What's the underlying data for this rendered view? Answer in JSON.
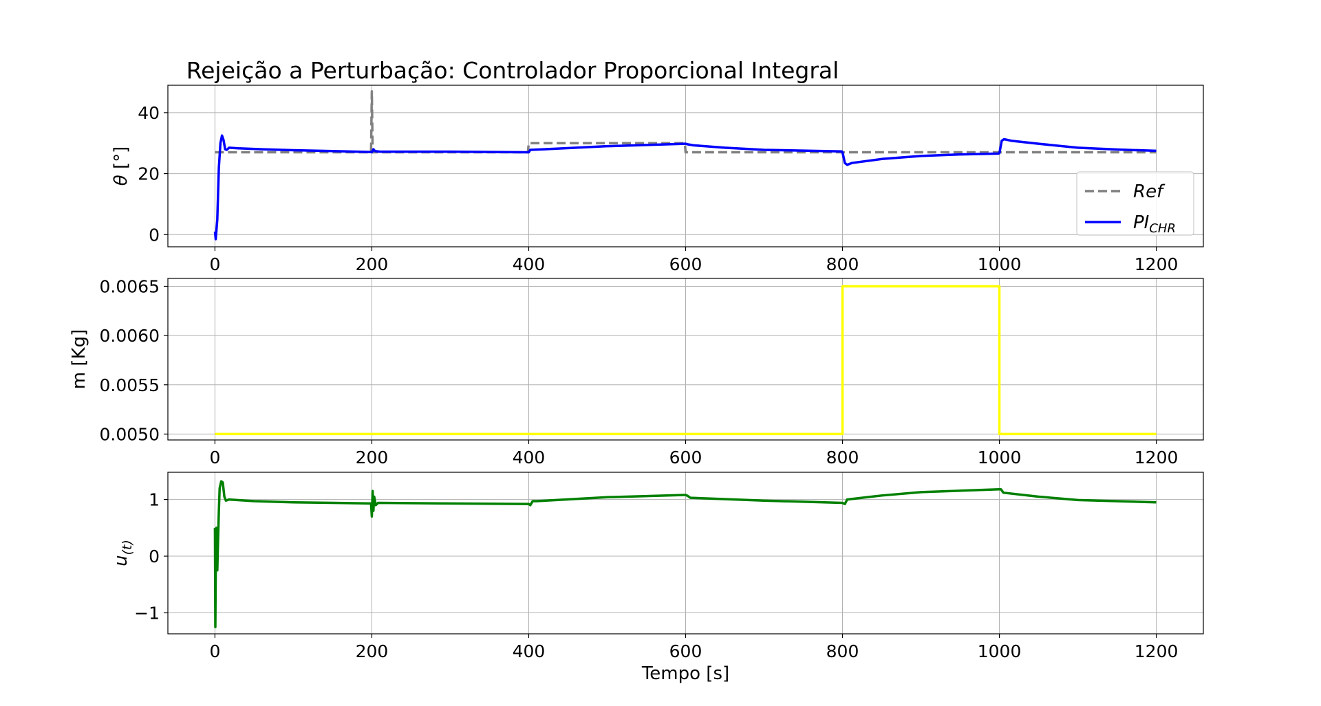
{
  "title": "Rejeição a Perturbação: Controlador Proporcional Integral",
  "chart_data": [
    {
      "type": "line",
      "panel": "theta",
      "ylabel_symbol": "θ",
      "ylabel_unit": "[°]",
      "xlim": [
        -60,
        1260
      ],
      "ylim": [
        -4,
        49
      ],
      "xticks": [
        0,
        200,
        400,
        600,
        800,
        1000,
        1200
      ],
      "yticks": [
        0,
        20,
        40
      ],
      "grid": true,
      "legend_position": "lower-right",
      "series": [
        {
          "name": "Ref",
          "style": "dashed",
          "color": "#808080",
          "points": [
            [
              0,
              27
            ],
            [
              199,
              27
            ],
            [
              200,
              47
            ],
            [
              201,
              27
            ],
            [
              202,
              27
            ],
            [
              399,
              27
            ],
            [
              400,
              30
            ],
            [
              599,
              30
            ],
            [
              600,
              27
            ],
            [
              1200,
              27
            ]
          ]
        },
        {
          "name": "PI",
          "name_subscript": "CHR",
          "style": "solid",
          "color": "#0000ff",
          "points": [
            [
              0,
              1
            ],
            [
              1,
              -1.5
            ],
            [
              3,
              5
            ],
            [
              5,
              22
            ],
            [
              7,
              30
            ],
            [
              9,
              32.5
            ],
            [
              11,
              31
            ],
            [
              13,
              28
            ],
            [
              15,
              27.8
            ],
            [
              18,
              28.5
            ],
            [
              30,
              28.3
            ],
            [
              60,
              28
            ],
            [
              100,
              27.7
            ],
            [
              150,
              27.4
            ],
            [
              199,
              27.1
            ],
            [
              200,
              27
            ],
            [
              202,
              28
            ],
            [
              204,
              27.4
            ],
            [
              210,
              27.2
            ],
            [
              300,
              27.2
            ],
            [
              399,
              27
            ],
            [
              400,
              27
            ],
            [
              402,
              27.8
            ],
            [
              420,
              28
            ],
            [
              500,
              29
            ],
            [
              599,
              29.8
            ],
            [
              600,
              29.8
            ],
            [
              603,
              29.6
            ],
            [
              610,
              29.3
            ],
            [
              650,
              28.5
            ],
            [
              700,
              27.8
            ],
            [
              799,
              27.3
            ],
            [
              800,
              27
            ],
            [
              803,
              23.5
            ],
            [
              806,
              22.9
            ],
            [
              812,
              23.5
            ],
            [
              850,
              24.8
            ],
            [
              900,
              25.8
            ],
            [
              950,
              26.3
            ],
            [
              999,
              26.6
            ],
            [
              1000,
              26.7
            ],
            [
              1003,
              30.8
            ],
            [
              1006,
              31.3
            ],
            [
              1015,
              30.8
            ],
            [
              1050,
              29.8
            ],
            [
              1100,
              28.5
            ],
            [
              1150,
              27.9
            ],
            [
              1200,
              27.5
            ]
          ]
        }
      ]
    },
    {
      "type": "line",
      "panel": "mass",
      "ylabel": "m [Kg]",
      "xlim": [
        -60,
        1260
      ],
      "ylim": [
        0.00494,
        0.00658
      ],
      "xticks": [
        0,
        200,
        400,
        600,
        800,
        1000,
        1200
      ],
      "yticks": [
        0.005,
        0.0055,
        0.006,
        0.0065
      ],
      "ytick_labels": [
        "0.0050",
        "0.0055",
        "0.0060",
        "0.0065"
      ],
      "grid": true,
      "series": [
        {
          "color": "#ffff00",
          "style": "solid",
          "points": [
            [
              0,
              0.005
            ],
            [
              800,
              0.005
            ],
            [
              800,
              0.0065
            ],
            [
              1000,
              0.0065
            ],
            [
              1000,
              0.005
            ],
            [
              1200,
              0.005
            ]
          ]
        }
      ]
    },
    {
      "type": "line",
      "panel": "control",
      "ylabel_symbol": "u",
      "ylabel_subscript": "(t)",
      "xlabel": "Tempo [s]",
      "xlim": [
        -60,
        1260
      ],
      "ylim": [
        -1.37,
        1.48
      ],
      "xticks": [
        0,
        200,
        400,
        600,
        800,
        1000,
        1200
      ],
      "yticks": [
        -1,
        0,
        1
      ],
      "ytick_labels": [
        "−1",
        "0",
        "1"
      ],
      "grid": true,
      "series": [
        {
          "color": "#008000",
          "style": "solid",
          "points": [
            [
              0,
              0.5
            ],
            [
              0.5,
              -1.25
            ],
            [
              1,
              -0.3
            ],
            [
              2,
              0.5
            ],
            [
              3,
              -0.25
            ],
            [
              4,
              0.3
            ],
            [
              5,
              0.8
            ],
            [
              6,
              1.2
            ],
            [
              8,
              1.32
            ],
            [
              10,
              1.3
            ],
            [
              12,
              1.05
            ],
            [
              14,
              0.98
            ],
            [
              18,
              1.0
            ],
            [
              50,
              0.97
            ],
            [
              100,
              0.95
            ],
            [
              150,
              0.94
            ],
            [
              199,
              0.93
            ],
            [
              200,
              0.7
            ],
            [
              201,
              1.15
            ],
            [
              202,
              0.8
            ],
            [
              203,
              1.05
            ],
            [
              205,
              0.9
            ],
            [
              208,
              0.94
            ],
            [
              300,
              0.93
            ],
            [
              399,
              0.92
            ],
            [
              400,
              0.92
            ],
            [
              402,
              0.9
            ],
            [
              405,
              0.97
            ],
            [
              410,
              0.97
            ],
            [
              500,
              1.04
            ],
            [
              599,
              1.08
            ],
            [
              600,
              1.08
            ],
            [
              603,
              1.06
            ],
            [
              606,
              1.03
            ],
            [
              700,
              0.98
            ],
            [
              799,
              0.94
            ],
            [
              800,
              0.94
            ],
            [
              803,
              0.92
            ],
            [
              806,
              1.0
            ],
            [
              850,
              1.07
            ],
            [
              900,
              1.13
            ],
            [
              1000,
              1.18
            ],
            [
              1002,
              1.18
            ],
            [
              1005,
              1.12
            ],
            [
              1050,
              1.05
            ],
            [
              1100,
              0.99
            ],
            [
              1200,
              0.95
            ]
          ]
        }
      ]
    }
  ]
}
